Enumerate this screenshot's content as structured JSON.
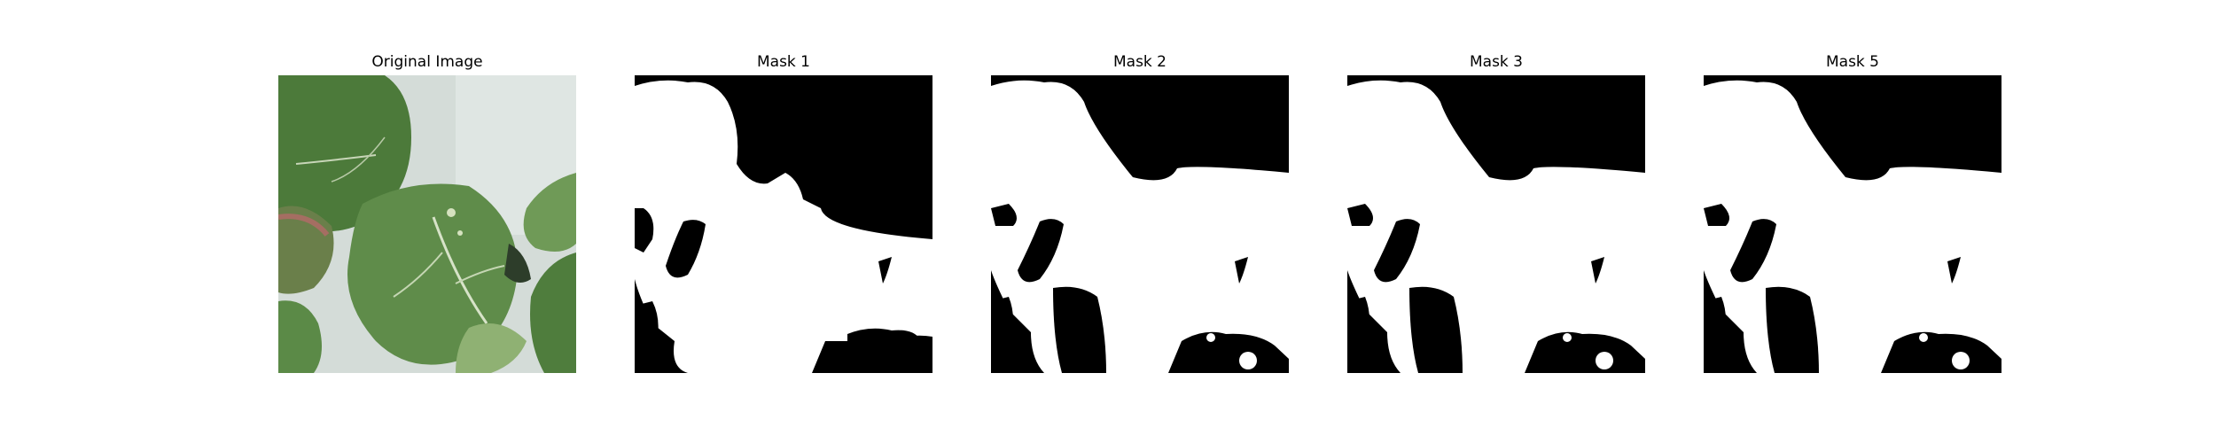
{
  "panels": [
    {
      "title": "Original Image"
    },
    {
      "title": "Mask 1"
    },
    {
      "title": "Mask 2"
    },
    {
      "title": "Mask 3"
    },
    {
      "title": "Mask 5"
    }
  ],
  "colors": {
    "background": "#ffffff",
    "mask_foreground": "#ffffff",
    "mask_background": "#000000",
    "leaf_dark": "#3f6b33",
    "leaf_mid": "#5f8c4a",
    "leaf_light": "#8fb173",
    "photo_background": "#d4dcd8"
  }
}
